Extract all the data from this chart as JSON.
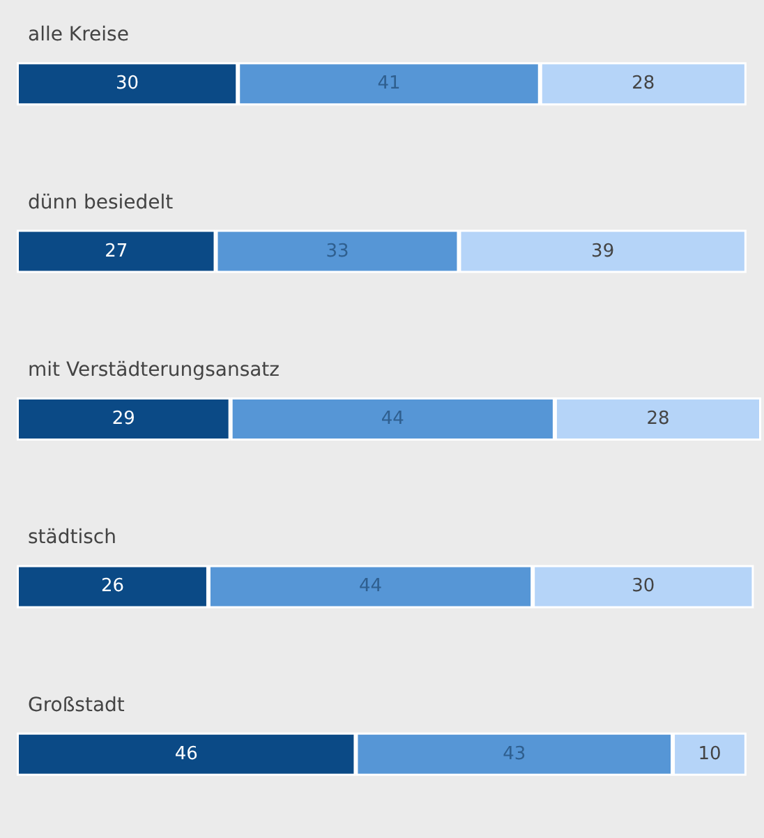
{
  "chart_data": {
    "type": "bar",
    "orientation": "horizontal",
    "stacked": true,
    "data_labels": true,
    "tick_labels": "y",
    "categories": [
      "alle Kreise",
      "dünn besiedelt",
      "mit Verstädterungsansatz",
      "städtisch",
      "Großstadt"
    ],
    "series": [
      {
        "color": "#0b4a86",
        "values": [
          30,
          27,
          29,
          26,
          46
        ]
      },
      {
        "color": "#5696d6",
        "values": [
          41,
          33,
          44,
          44,
          43
        ]
      },
      {
        "color": "#b5d4f8",
        "values": [
          28,
          39,
          28,
          30,
          10
        ]
      }
    ]
  }
}
